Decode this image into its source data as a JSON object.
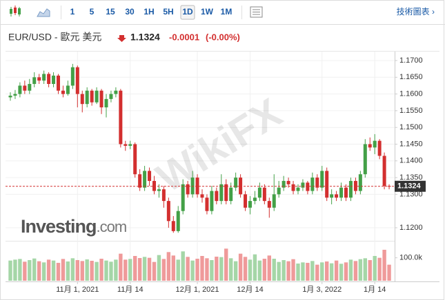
{
  "toolbar": {
    "buttons": [
      "1",
      "5",
      "15",
      "30",
      "1H",
      "5H",
      "1D",
      "1W",
      "1M"
    ],
    "active_index": 6,
    "link": "技術圖表 ›"
  },
  "header": {
    "symbol": "EUR/USD - 歐元 美元",
    "price": "1.1324",
    "change": "-0.0001",
    "change_pct": "(-0.00%)"
  },
  "watermarks": {
    "wikifx": "WikiFX",
    "brand": "Investing",
    "brand_suffix": ".com"
  },
  "chart_data": {
    "type": "candlestick",
    "categories": [
      null,
      null,
      null,
      null,
      null,
      null,
      null,
      null,
      null,
      null,
      null,
      null,
      null,
      null,
      "11月 1, 2021",
      null,
      null,
      null,
      null,
      null,
      null,
      null,
      null,
      null,
      null,
      "11月 14",
      null,
      null,
      null,
      null,
      null,
      null,
      null,
      null,
      null,
      null,
      null,
      null,
      null,
      "12月 1, 2021",
      null,
      null,
      null,
      null,
      null,
      null,
      null,
      null,
      null,
      null,
      "12月 14",
      null,
      null,
      null,
      null,
      null,
      null,
      null,
      null,
      null,
      null,
      null,
      null,
      null,
      null,
      "1月 3, 2022",
      null,
      null,
      null,
      null,
      null,
      null,
      null,
      null,
      null,
      null,
      "1月 14",
      null,
      null,
      null
    ],
    "open": [
      1.159,
      1.1595,
      1.16,
      1.1625,
      1.161,
      1.163,
      1.165,
      1.164,
      1.166,
      1.163,
      1.1655,
      1.161,
      1.16,
      1.1625,
      1.168,
      1.16,
      1.157,
      1.161,
      1.1575,
      1.161,
      1.156,
      1.1585,
      1.16,
      1.161,
      1.145,
      1.1445,
      1.145,
      1.136,
      1.132,
      1.137,
      1.134,
      1.131,
      1.1315,
      1.128,
      1.122,
      1.119,
      1.125,
      1.133,
      1.13,
      1.135,
      1.13,
      1.129,
      1.125,
      1.131,
      1.128,
      1.133,
      1.128,
      1.132,
      1.135,
      1.13,
      1.126,
      1.128,
      1.129,
      1.132,
      1.128,
      1.126,
      1.13,
      1.132,
      1.134,
      1.133,
      1.131,
      1.132,
      1.1335,
      1.131,
      1.135,
      1.132,
      1.137,
      1.129,
      1.13,
      1.129,
      1.132,
      1.129,
      1.134,
      1.131,
      1.136,
      1.145,
      1.144,
      1.146,
      1.1415,
      1.1325
    ],
    "high": [
      1.1605,
      1.1612,
      1.1635,
      1.164,
      1.1645,
      1.1665,
      1.166,
      1.167,
      1.1665,
      1.1665,
      1.166,
      1.1625,
      1.164,
      1.169,
      1.1685,
      1.161,
      1.162,
      1.1615,
      1.162,
      1.1615,
      1.16,
      1.161,
      1.162,
      1.1615,
      1.146,
      1.146,
      1.1455,
      1.1375,
      1.1385,
      1.138,
      1.1355,
      1.133,
      1.1325,
      1.129,
      1.1235,
      1.1265,
      1.1345,
      1.134,
      1.137,
      1.136,
      1.1315,
      1.13,
      1.1325,
      1.132,
      1.136,
      1.1345,
      1.1335,
      1.1365,
      1.136,
      1.131,
      1.1295,
      1.131,
      1.1335,
      1.133,
      1.129,
      1.136,
      1.134,
      1.1355,
      1.135,
      1.134,
      1.133,
      1.1345,
      1.134,
      1.1365,
      1.136,
      1.1385,
      1.138,
      1.1315,
      1.131,
      1.1335,
      1.133,
      1.135,
      1.135,
      1.137,
      1.1465,
      1.147,
      1.148,
      1.1465,
      1.1425,
      1.133
    ],
    "low": [
      1.158,
      1.1585,
      1.159,
      1.16,
      1.16,
      1.162,
      1.163,
      1.163,
      1.162,
      1.162,
      1.16,
      1.159,
      1.1595,
      1.1615,
      1.156,
      1.1545,
      1.156,
      1.1565,
      1.157,
      1.154,
      1.153,
      1.1575,
      1.159,
      1.144,
      1.143,
      1.1435,
      1.135,
      1.131,
      1.131,
      1.1325,
      1.13,
      1.129,
      1.126,
      1.12,
      1.1185,
      1.1185,
      1.124,
      1.129,
      1.129,
      1.129,
      1.1275,
      1.124,
      1.124,
      1.127,
      1.127,
      1.127,
      1.127,
      1.131,
      1.129,
      1.125,
      1.124,
      1.127,
      1.128,
      1.127,
      1.123,
      1.125,
      1.129,
      1.131,
      1.132,
      1.13,
      1.13,
      1.131,
      1.13,
      1.13,
      1.131,
      1.131,
      1.128,
      1.127,
      1.128,
      1.128,
      1.128,
      1.128,
      1.13,
      1.13,
      1.135,
      1.143,
      1.142,
      1.1405,
      1.1315,
      1.1315
    ],
    "close": [
      1.1595,
      1.16,
      1.1625,
      1.161,
      1.163,
      1.165,
      1.164,
      1.166,
      1.163,
      1.1655,
      1.161,
      1.16,
      1.1625,
      1.168,
      1.16,
      1.157,
      1.161,
      1.1575,
      1.161,
      1.156,
      1.1585,
      1.16,
      1.161,
      1.145,
      1.1445,
      1.145,
      1.136,
      1.132,
      1.137,
      1.134,
      1.131,
      1.1315,
      1.128,
      1.122,
      1.119,
      1.125,
      1.133,
      1.13,
      1.135,
      1.13,
      1.129,
      1.125,
      1.131,
      1.128,
      1.133,
      1.128,
      1.132,
      1.135,
      1.13,
      1.126,
      1.128,
      1.129,
      1.132,
      1.128,
      1.126,
      1.13,
      1.132,
      1.134,
      1.133,
      1.131,
      1.132,
      1.1335,
      1.131,
      1.135,
      1.132,
      1.137,
      1.129,
      1.13,
      1.129,
      1.132,
      1.129,
      1.134,
      1.131,
      1.136,
      1.145,
      1.144,
      1.146,
      1.1415,
      1.1325,
      1.1324
    ],
    "up_color": "#43a047",
    "down_color": "#d32f2f",
    "ylim": [
      1.1165,
      1.172
    ],
    "yticks": [
      {
        "value": 1.12,
        "label": "1.1200"
      },
      {
        "value": 1.13,
        "label": "1.1300"
      },
      {
        "value": 1.135,
        "label": "1.1350"
      },
      {
        "value": 1.14,
        "label": "1.1400"
      },
      {
        "value": 1.145,
        "label": "1.1450"
      },
      {
        "value": 1.15,
        "label": "1.1500"
      },
      {
        "value": 1.155,
        "label": "1.1550"
      },
      {
        "value": 1.16,
        "label": "1.1600"
      },
      {
        "value": 1.165,
        "label": "1.1650"
      },
      {
        "value": 1.17,
        "label": "1.1700"
      }
    ],
    "grid": true,
    "last_price": {
      "value": 1.1324,
      "label": "1.1324",
      "color": "#d32f2f"
    },
    "volume": {
      "values": [
        88000,
        92000,
        95000,
        83000,
        90000,
        97000,
        85000,
        80000,
        92000,
        88000,
        78000,
        95000,
        84000,
        98000,
        90000,
        86000,
        93000,
        87000,
        82000,
        96000,
        88000,
        83000,
        92000,
        118000,
        92000,
        95000,
        108000,
        99000,
        104000,
        100000,
        82000,
        112000,
        95000,
        125000,
        110000,
        92000,
        128000,
        104000,
        88000,
        96000,
        108000,
        98000,
        90000,
        105000,
        103000,
        140000,
        98000,
        85000,
        118000,
        104000,
        92000,
        115000,
        88000,
        96000,
        110000,
        96000,
        82000,
        90000,
        85000,
        94000,
        75000,
        80000,
        78000,
        86000,
        70000,
        80000,
        84000,
        76000,
        88000,
        74000,
        80000,
        92000,
        86000,
        94000,
        98000,
        90000,
        108000,
        100000,
        135000,
        70000
      ],
      "up_color": "#a5d6a7",
      "down_color": "#ef9a9a",
      "ylim": [
        0,
        150000
      ],
      "yticks": [
        {
          "value": 100000,
          "label": "100.0k"
        }
      ]
    }
  }
}
